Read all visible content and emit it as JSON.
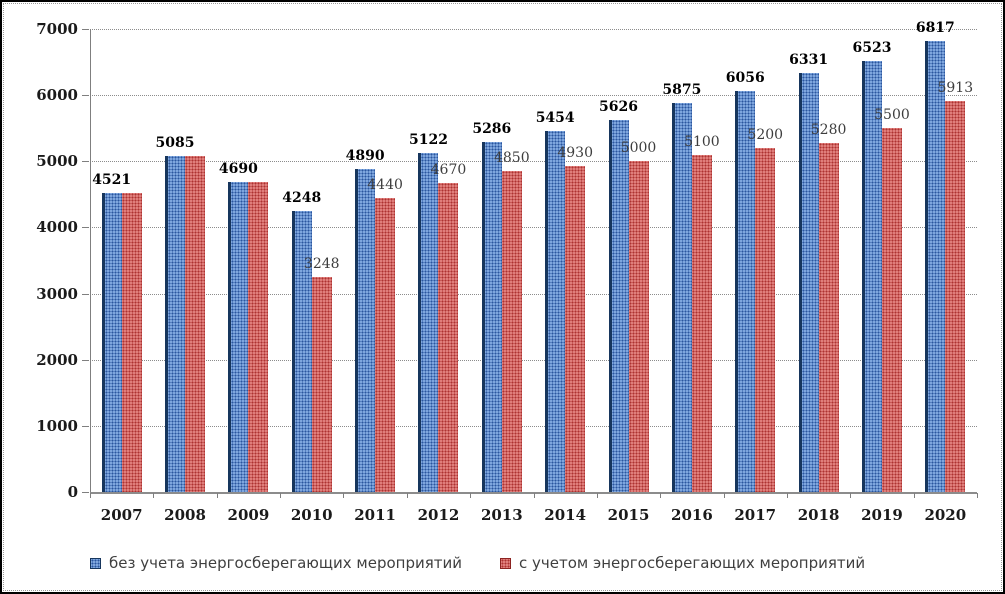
{
  "chart_data": {
    "type": "bar",
    "title": "",
    "xlabel": "",
    "ylabel": "",
    "categories": [
      "2007",
      "2008",
      "2009",
      "2010",
      "2011",
      "2012",
      "2013",
      "2014",
      "2015",
      "2016",
      "2017",
      "2018",
      "2019",
      "2020"
    ],
    "series": [
      {
        "name": "без учета энергосберегающих мероприятий",
        "color": "#7ea6de",
        "dot_color": "#2a559e",
        "edge_color": "#17365d",
        "values": [
          4521,
          5085,
          4690,
          4248,
          4890,
          5122,
          5286,
          5454,
          5626,
          5875,
          6056,
          6331,
          6523,
          6817
        ],
        "labels": [
          "4521",
          "5085",
          "4690",
          "4248",
          "4890",
          "5122",
          "5286",
          "5454",
          "5626",
          "5875",
          "6056",
          "6331",
          "6523",
          "6817"
        ]
      },
      {
        "name": "с учетом энергосберегающих мероприятий",
        "color": "#e07e7b",
        "dot_color": "#ad3230",
        "edge_color": "#8c2321",
        "values": [
          4521,
          5085,
          4690,
          3248,
          4440,
          4670,
          4850,
          4930,
          5000,
          5100,
          5200,
          5280,
          5500,
          5913
        ],
        "labels": [
          "",
          "",
          "",
          "3248",
          "4440",
          "4670",
          "4850",
          "4930",
          "5000",
          "5100",
          "5200",
          "5280",
          "5500",
          "5913"
        ]
      }
    ],
    "ylim": [
      0,
      7000
    ],
    "yticks": [
      0,
      1000,
      2000,
      3000,
      4000,
      5000,
      6000,
      7000
    ],
    "grid": "horizontal-dotted",
    "legend_position": "bottom",
    "legend": [
      {
        "label": "без учета энергосберегающих мероприятий",
        "series": 0
      },
      {
        "label": "с учетом энергосберегающих мероприятий",
        "series": 1
      }
    ]
  }
}
